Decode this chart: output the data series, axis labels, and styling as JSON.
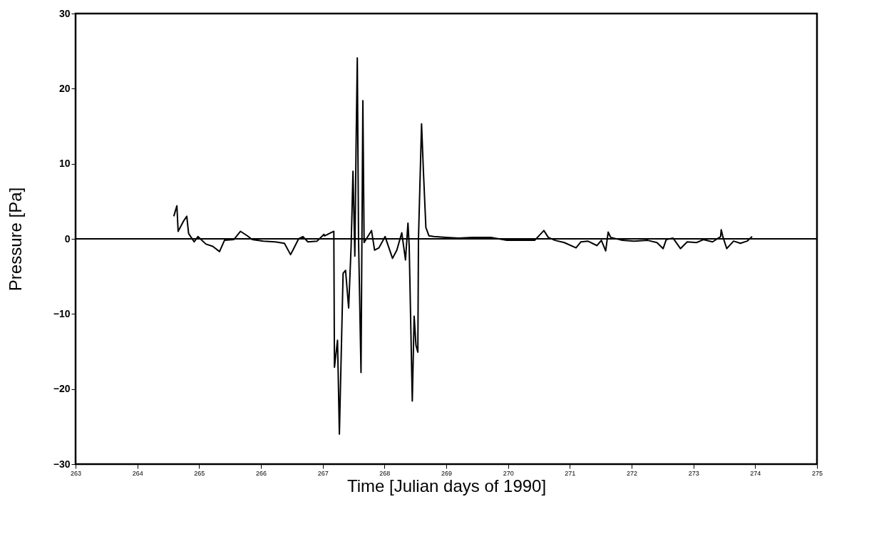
{
  "chart_data": {
    "type": "line",
    "xlabel": "Time [Julian days of 1990]",
    "ylabel": "Pressure [Pa]",
    "xlim": [
      263,
      275
    ],
    "xticks": [
      263,
      264,
      265,
      266,
      267,
      268,
      269,
      270,
      271,
      272,
      273,
      274,
      275
    ],
    "ylim": [
      -30,
      30
    ],
    "yticks": [
      -30,
      -20,
      -10,
      0,
      10,
      20,
      30
    ],
    "ref_lines": [
      {
        "axis": "y",
        "value": 0,
        "color": "#000000"
      }
    ],
    "series": [
      {
        "color": "#000000",
        "x": [
          264.59,
          264.64,
          264.66,
          264.75,
          264.8,
          264.83,
          264.92,
          264.98,
          265.11,
          265.22,
          265.33,
          265.41,
          265.56,
          265.67,
          265.78,
          265.86,
          266.04,
          266.23,
          266.38,
          266.48,
          266.53,
          266.61,
          266.68,
          266.76,
          266.91,
          267.02,
          267.03,
          267.18,
          267.19,
          267.24,
          267.27,
          267.33,
          267.37,
          267.42,
          267.46,
          267.49,
          267.52,
          267.54,
          267.56,
          267.58,
          267.62,
          267.65,
          267.67,
          267.73,
          267.79,
          267.84,
          267.91,
          268.01,
          268.13,
          268.2,
          268.28,
          268.34,
          268.38,
          268.4,
          268.45,
          268.48,
          268.51,
          268.54,
          268.55,
          268.6,
          268.63,
          268.67,
          268.72,
          268.8,
          269.0,
          269.2,
          269.42,
          269.72,
          269.98,
          270.43,
          270.58,
          270.65,
          270.76,
          270.91,
          271.1,
          271.18,
          271.29,
          271.44,
          271.51,
          271.58,
          271.62,
          271.66,
          271.85,
          272.04,
          272.26,
          272.41,
          272.51,
          272.56,
          272.67,
          272.79,
          272.9,
          273.05,
          273.16,
          273.31,
          273.44,
          273.45,
          273.48,
          273.54,
          273.65,
          273.76,
          273.87,
          273.95
        ],
        "values": [
          3.0,
          4.4,
          1.0,
          2.4,
          3.0,
          0.7,
          -0.4,
          0.3,
          -0.7,
          -1.0,
          -1.7,
          -0.2,
          -0.1,
          1.0,
          0.4,
          -0.1,
          -0.3,
          -0.4,
          -0.6,
          -2.1,
          -1.3,
          0,
          0.3,
          -0.4,
          -0.3,
          0.6,
          0.4,
          1.0,
          -17.1,
          -13.5,
          -26,
          -4.6,
          -4.2,
          -9.2,
          -1,
          9.0,
          -2.3,
          12.3,
          24.1,
          0,
          -17.8,
          18.4,
          -0.5,
          0.3,
          1.1,
          -1.5,
          -1.2,
          0.3,
          -2.6,
          -1.5,
          0.8,
          -2.8,
          2.1,
          -1,
          -21.6,
          -10.3,
          -14.2,
          -15.1,
          0,
          15.3,
          9.0,
          1.5,
          0.4,
          0.3,
          0.2,
          0.1,
          0.2,
          0.2,
          -0.2,
          -0.2,
          1.1,
          0.2,
          -0.2,
          -0.5,
          -1.2,
          -0.4,
          -0.3,
          -0.9,
          -0.2,
          -1.6,
          0.9,
          0.2,
          -0.2,
          -0.3,
          -0.2,
          -0.5,
          -1.3,
          -0.1,
          0.1,
          -1.3,
          -0.4,
          -0.5,
          -0.1,
          -0.4,
          0.3,
          1.2,
          0.2,
          -1.3,
          -0.3,
          -0.6,
          -0.3,
          0.3
        ]
      }
    ]
  }
}
